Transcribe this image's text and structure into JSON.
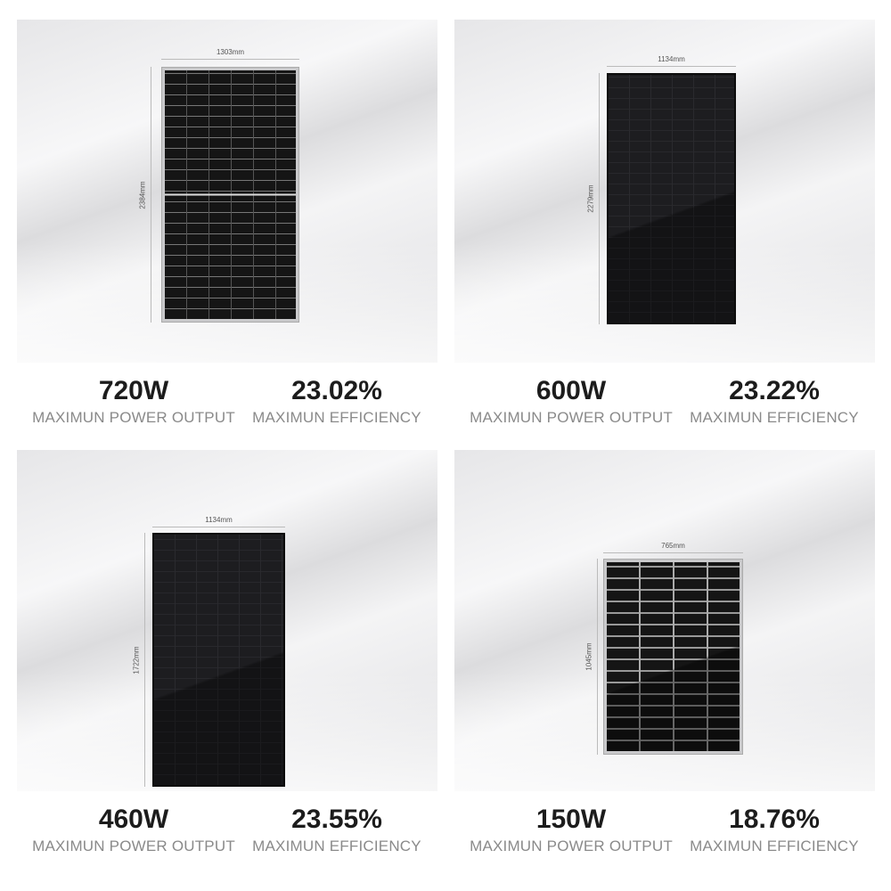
{
  "products": [
    {
      "power": "720W",
      "power_label": "MAXIMUN POWER OUTPUT",
      "efficiency": "23.02%",
      "efficiency_label": "MAXIMUN EFFICIENCY",
      "width": "1303mm",
      "height": "2384mm",
      "frame": "silver"
    },
    {
      "power": "600W",
      "power_label": "MAXIMUN POWER OUTPUT",
      "efficiency": "23.22%",
      "efficiency_label": "MAXIMUN EFFICIENCY",
      "width": "1134mm",
      "height": "2279mm",
      "frame": "black"
    },
    {
      "power": "460W",
      "power_label": "MAXIMUN POWER OUTPUT",
      "efficiency": "23.55%",
      "efficiency_label": "MAXIMUN EFFICIENCY",
      "width": "1134mm",
      "height": "1722mm",
      "frame": "black"
    },
    {
      "power": "150W",
      "power_label": "MAXIMUN POWER OUTPUT",
      "efficiency": "18.76%",
      "efficiency_label": "MAXIMUN EFFICIENCY",
      "width": "765mm",
      "height": "1045mm",
      "frame": "silver"
    }
  ]
}
